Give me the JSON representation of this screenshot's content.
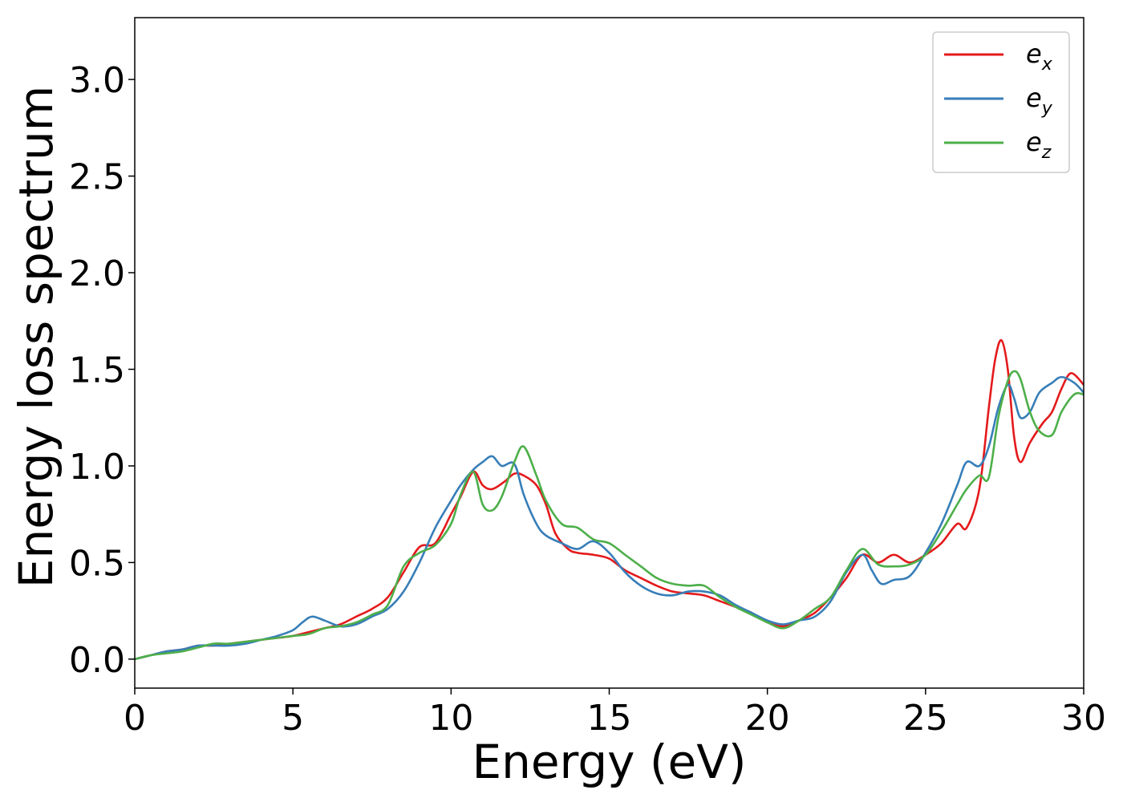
{
  "chart_data": {
    "type": "line",
    "xlabel": "Energy (eV)",
    "ylabel": "Energy loss spectrum",
    "xlim": [
      0,
      30
    ],
    "ylim": [
      -0.15,
      3.32
    ],
    "xticks": [
      "0",
      "5",
      "10",
      "15",
      "20",
      "25",
      "30"
    ],
    "xtick_values": [
      0,
      5,
      10,
      15,
      20,
      25,
      30
    ],
    "yticks": [
      "0.0",
      "0.5",
      "1.0",
      "1.5",
      "2.0",
      "2.5",
      "3.0"
    ],
    "ytick_values": [
      0.0,
      0.5,
      1.0,
      1.5,
      2.0,
      2.5,
      3.0
    ],
    "grid": false,
    "legend_position": "top-right",
    "series": [
      {
        "name": "e_x",
        "label_base": "e",
        "label_sub": "x",
        "color": "#e41a1c",
        "x": [
          0,
          0.5,
          1.0,
          1.5,
          2.0,
          2.5,
          3.0,
          3.5,
          4.0,
          4.5,
          5.0,
          5.5,
          6.0,
          6.5,
          7.0,
          7.5,
          8.0,
          8.5,
          9.0,
          9.5,
          10.0,
          10.3,
          10.7,
          11.0,
          11.3,
          11.7,
          12.0,
          12.3,
          12.7,
          13.0,
          13.3,
          13.7,
          14.0,
          14.5,
          15.0,
          15.5,
          16.0,
          16.5,
          17.0,
          17.5,
          18.0,
          18.5,
          19.0,
          19.5,
          20.0,
          20.5,
          21.0,
          21.5,
          22.0,
          22.5,
          23.0,
          23.5,
          24.0,
          24.5,
          25.0,
          25.5,
          26.0,
          26.3,
          26.7,
          27.0,
          27.2,
          27.4,
          27.6,
          27.8,
          28.0,
          28.3,
          28.7,
          29.0,
          29.3,
          29.6,
          30.0
        ],
        "y": [
          0.0,
          0.02,
          0.04,
          0.05,
          0.07,
          0.07,
          0.08,
          0.09,
          0.1,
          0.11,
          0.12,
          0.14,
          0.16,
          0.18,
          0.22,
          0.26,
          0.32,
          0.45,
          0.58,
          0.6,
          0.75,
          0.84,
          0.97,
          0.9,
          0.88,
          0.92,
          0.96,
          0.95,
          0.9,
          0.8,
          0.65,
          0.57,
          0.55,
          0.54,
          0.52,
          0.46,
          0.42,
          0.38,
          0.35,
          0.34,
          0.33,
          0.3,
          0.27,
          0.24,
          0.19,
          0.17,
          0.2,
          0.24,
          0.32,
          0.42,
          0.54,
          0.5,
          0.54,
          0.5,
          0.54,
          0.6,
          0.7,
          0.68,
          0.88,
          1.3,
          1.55,
          1.65,
          1.5,
          1.15,
          1.02,
          1.12,
          1.22,
          1.28,
          1.4,
          1.48,
          1.42
        ]
      },
      {
        "name": "e_y",
        "label_base": "e",
        "label_sub": "y",
        "color": "#377eb8",
        "x": [
          0,
          0.5,
          1.0,
          1.5,
          2.0,
          2.5,
          3.0,
          3.5,
          4.0,
          4.5,
          5.0,
          5.3,
          5.6,
          6.0,
          6.5,
          7.0,
          7.5,
          8.0,
          8.5,
          9.0,
          9.5,
          10.0,
          10.3,
          10.7,
          11.0,
          11.3,
          11.6,
          12.0,
          12.3,
          12.7,
          13.0,
          13.5,
          14.0,
          14.5,
          15.0,
          15.5,
          16.0,
          16.5,
          17.0,
          17.5,
          18.0,
          18.5,
          19.0,
          19.5,
          20.0,
          20.5,
          21.0,
          21.5,
          22.0,
          22.5,
          23.0,
          23.3,
          23.6,
          24.0,
          24.5,
          25.0,
          25.5,
          26.0,
          26.3,
          26.7,
          27.0,
          27.3,
          27.6,
          27.8,
          28.0,
          28.3,
          28.6,
          29.0,
          29.3,
          29.7,
          30.0
        ],
        "y": [
          0.0,
          0.02,
          0.04,
          0.05,
          0.07,
          0.07,
          0.07,
          0.08,
          0.1,
          0.12,
          0.15,
          0.19,
          0.22,
          0.2,
          0.17,
          0.18,
          0.22,
          0.26,
          0.35,
          0.5,
          0.68,
          0.82,
          0.9,
          0.98,
          1.02,
          1.05,
          1.0,
          1.01,
          0.85,
          0.7,
          0.64,
          0.6,
          0.57,
          0.61,
          0.55,
          0.45,
          0.38,
          0.34,
          0.33,
          0.35,
          0.35,
          0.33,
          0.28,
          0.24,
          0.2,
          0.18,
          0.2,
          0.22,
          0.3,
          0.45,
          0.54,
          0.46,
          0.39,
          0.41,
          0.43,
          0.55,
          0.7,
          0.9,
          1.02,
          1.0,
          1.1,
          1.3,
          1.42,
          1.35,
          1.25,
          1.28,
          1.38,
          1.43,
          1.46,
          1.43,
          1.38
        ]
      },
      {
        "name": "e_z",
        "label_base": "e",
        "label_sub": "z",
        "color": "#4daf4a",
        "x": [
          0,
          0.5,
          1.0,
          1.5,
          2.0,
          2.5,
          3.0,
          3.5,
          4.0,
          4.5,
          5.0,
          5.5,
          6.0,
          6.5,
          7.0,
          7.5,
          8.0,
          8.5,
          9.0,
          9.5,
          10.0,
          10.3,
          10.7,
          11.0,
          11.3,
          11.6,
          12.0,
          12.3,
          12.7,
          13.0,
          13.5,
          14.0,
          14.5,
          15.0,
          15.5,
          16.0,
          16.5,
          17.0,
          17.5,
          18.0,
          18.5,
          19.0,
          19.5,
          20.0,
          20.5,
          21.0,
          21.5,
          22.0,
          22.5,
          23.0,
          23.5,
          24.0,
          24.5,
          25.0,
          25.5,
          26.0,
          26.3,
          26.7,
          27.0,
          27.3,
          27.6,
          27.8,
          28.0,
          28.3,
          28.6,
          29.0,
          29.3,
          29.7,
          30.0
        ],
        "y": [
          0.0,
          0.02,
          0.03,
          0.04,
          0.06,
          0.08,
          0.08,
          0.09,
          0.1,
          0.11,
          0.12,
          0.13,
          0.16,
          0.17,
          0.19,
          0.23,
          0.28,
          0.48,
          0.55,
          0.59,
          0.7,
          0.85,
          0.97,
          0.8,
          0.77,
          0.84,
          1.02,
          1.1,
          0.95,
          0.82,
          0.7,
          0.68,
          0.62,
          0.6,
          0.54,
          0.48,
          0.42,
          0.39,
          0.38,
          0.38,
          0.32,
          0.27,
          0.23,
          0.19,
          0.16,
          0.2,
          0.26,
          0.32,
          0.46,
          0.57,
          0.49,
          0.48,
          0.49,
          0.54,
          0.66,
          0.8,
          0.88,
          0.95,
          0.94,
          1.25,
          1.44,
          1.49,
          1.45,
          1.28,
          1.18,
          1.16,
          1.28,
          1.37,
          1.37
        ]
      }
    ]
  }
}
